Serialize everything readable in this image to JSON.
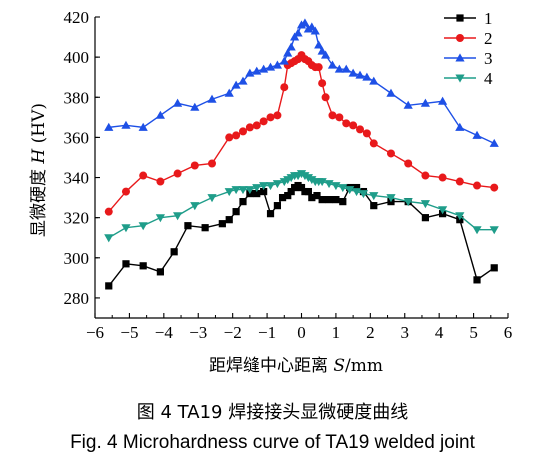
{
  "chart_data": {
    "type": "line",
    "xlabel_prefix": "距焊缝中心距离 ",
    "xlabel_var": "S",
    "xlabel_unit": "/mm",
    "ylabel_prefix": "显微硬度 ",
    "ylabel_var": "H",
    "ylabel_unit": " (HV)",
    "xlim": [
      -6,
      6
    ],
    "ylim": [
      270,
      420
    ],
    "xticks": [
      -6,
      -5,
      -4,
      -3,
      -2,
      -1,
      0,
      1,
      2,
      3,
      4,
      5,
      6
    ],
    "yticks": [
      280,
      300,
      320,
      340,
      360,
      380,
      400,
      420
    ],
    "legend_position": "top-right",
    "series": [
      {
        "name": "1",
        "color": "#000000",
        "marker": "square",
        "x": [
          -5.6,
          -5.1,
          -4.6,
          -4.1,
          -3.7,
          -3.3,
          -2.8,
          -2.3,
          -2.1,
          -1.9,
          -1.7,
          -1.5,
          -1.3,
          -1.1,
          -0.9,
          -0.7,
          -0.55,
          -0.4,
          -0.3,
          -0.2,
          -0.1,
          0,
          0.1,
          0.2,
          0.3,
          0.45,
          0.6,
          0.8,
          1.0,
          1.2,
          1.4,
          1.6,
          1.8,
          2.1,
          2.6,
          3.1,
          3.6,
          4.1,
          4.6,
          5.1,
          5.6
        ],
        "y": [
          286,
          297,
          296,
          293,
          303,
          316,
          315,
          317,
          319,
          323,
          328,
          332,
          332,
          333,
          322,
          326,
          330,
          331,
          333,
          335,
          336,
          335,
          333,
          333,
          330,
          331,
          329,
          329,
          329,
          328,
          335,
          335,
          333,
          326,
          328,
          328,
          320,
          322,
          319,
          289,
          295
        ]
      },
      {
        "name": "2",
        "color": "#e8191b",
        "marker": "circle",
        "x": [
          -5.6,
          -5.1,
          -4.6,
          -4.1,
          -3.6,
          -3.1,
          -2.6,
          -2.1,
          -1.9,
          -1.7,
          -1.5,
          -1.3,
          -1.1,
          -0.9,
          -0.7,
          -0.5,
          -0.4,
          -0.3,
          -0.2,
          -0.1,
          0,
          0.1,
          0.2,
          0.3,
          0.4,
          0.5,
          0.6,
          0.7,
          0.9,
          1.1,
          1.3,
          1.5,
          1.7,
          1.9,
          2.1,
          2.6,
          3.1,
          3.6,
          4.1,
          4.6,
          5.1,
          5.6
        ],
        "y": [
          323,
          333,
          341,
          338,
          342,
          346,
          347,
          360,
          361,
          363,
          365,
          366,
          368,
          370,
          371,
          385,
          396,
          397,
          398,
          399,
          401,
          399,
          398,
          396,
          395,
          395,
          387,
          380,
          371,
          370,
          367,
          366,
          364,
          362,
          357,
          352,
          347,
          341,
          340,
          338,
          336,
          335
        ]
      },
      {
        "name": "3",
        "color": "#1e50e6",
        "marker": "triangle-up",
        "x": [
          -5.6,
          -5.1,
          -4.6,
          -4.1,
          -3.6,
          -3.1,
          -2.6,
          -2.1,
          -1.9,
          -1.7,
          -1.5,
          -1.3,
          -1.1,
          -0.9,
          -0.7,
          -0.5,
          -0.4,
          -0.3,
          -0.2,
          -0.1,
          0,
          0.1,
          0.2,
          0.3,
          0.4,
          0.5,
          0.6,
          0.7,
          0.9,
          1.1,
          1.3,
          1.5,
          1.7,
          1.9,
          2.1,
          2.6,
          3.1,
          3.6,
          4.1,
          4.6,
          5.1,
          5.6
        ],
        "y": [
          365,
          366,
          365,
          371,
          377,
          375,
          379,
          382,
          386,
          388,
          392,
          393,
          394,
          395,
          396,
          398,
          402,
          405,
          410,
          412,
          416,
          417,
          414,
          415,
          413,
          406,
          403,
          401,
          396,
          394,
          394,
          392,
          391,
          390,
          388,
          382,
          376,
          377,
          378,
          365,
          361,
          357
        ]
      },
      {
        "name": "4",
        "color": "#1f9d8a",
        "marker": "triangle-down",
        "x": [
          -5.6,
          -5.1,
          -4.6,
          -4.1,
          -3.6,
          -3.1,
          -2.6,
          -2.1,
          -1.9,
          -1.7,
          -1.5,
          -1.3,
          -1.1,
          -0.9,
          -0.7,
          -0.5,
          -0.4,
          -0.3,
          -0.2,
          -0.1,
          0,
          0.1,
          0.2,
          0.3,
          0.4,
          0.5,
          0.6,
          0.8,
          1.0,
          1.2,
          1.4,
          1.6,
          1.8,
          2.1,
          2.6,
          3.1,
          3.6,
          4.1,
          4.6,
          5.1,
          5.6
        ],
        "y": [
          310,
          315,
          316,
          320,
          321,
          326,
          330,
          333,
          334,
          334,
          334,
          335,
          336,
          336,
          337,
          338,
          339,
          340,
          341,
          341,
          342,
          341,
          340,
          339,
          338,
          338,
          338,
          337,
          336,
          335,
          334,
          333,
          332,
          331,
          330,
          328,
          327,
          324,
          321,
          314,
          314
        ]
      }
    ]
  },
  "caption": {
    "zh": "图 4    TA19 焊接接头显微硬度曲线",
    "en": "Fig. 4    Microhardness curve of TA19 welded joint"
  }
}
